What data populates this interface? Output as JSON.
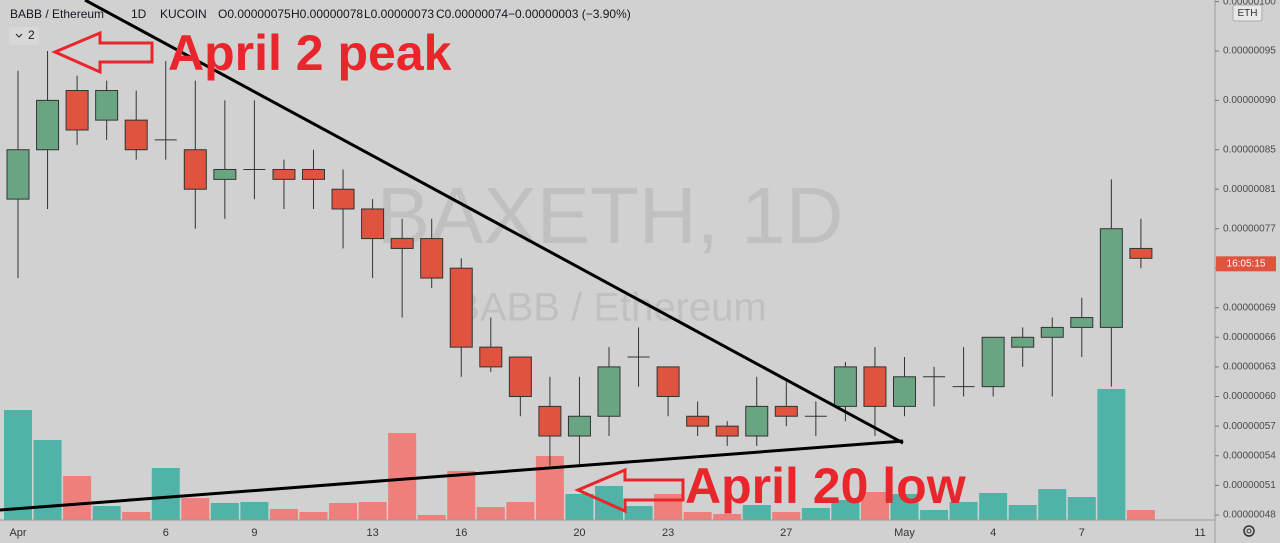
{
  "chart_data": {
    "type": "candlestick",
    "header": {
      "symbol": "BABB / Ethereum",
      "interval": "1D",
      "exchange": "KUCOIN",
      "open": "O0.00000075",
      "high": "H0.00000078",
      "low": "L0.00000073",
      "close": "C0.00000074",
      "change": "−0.00000003 (−3.90%)"
    },
    "indicator_badge": "2",
    "currency": "ETH",
    "countdown": "16:05:15",
    "watermark": "BAXETH, 1D",
    "watermark_sub": "BABB / Ethereum",
    "annotations": [
      "April 2 peak",
      "April 20 low"
    ],
    "categories": [
      "Apr",
      null,
      null,
      null,
      null,
      "6",
      null,
      null,
      "9",
      null,
      null,
      null,
      "13",
      null,
      null,
      "16",
      null,
      null,
      null,
      "20",
      null,
      null,
      "23",
      null,
      null,
      null,
      "27",
      null,
      null,
      null,
      "May",
      null,
      null,
      "4",
      null,
      null,
      "7",
      null,
      null,
      null,
      "11"
    ],
    "open": [
      8e-07,
      8.5e-07,
      9.1e-07,
      8.8e-07,
      8.8e-07,
      8.6e-07,
      8.5e-07,
      8.2e-07,
      8.3e-07,
      8.3e-07,
      8.3e-07,
      8.1e-07,
      7.9e-07,
      7.6e-07,
      7.6e-07,
      7.3e-07,
      6.5e-07,
      6.4e-07,
      5.9e-07,
      5.6e-07,
      5.8e-07,
      6.4e-07,
      6.3e-07,
      5.8e-07,
      5.7e-07,
      5.6e-07,
      5.9e-07,
      5.8e-07,
      5.9e-07,
      6.3e-07,
      5.9e-07,
      6.2e-07,
      6.1e-07,
      6.1e-07,
      6.5e-07,
      6.6e-07,
      6.7e-07,
      6.7e-07,
      7.5e-07,
      null,
      null
    ],
    "high": [
      9.3e-07,
      9.5e-07,
      9.25e-07,
      9.2e-07,
      9.1e-07,
      9.4e-07,
      9.2e-07,
      9e-07,
      9e-07,
      8.4e-07,
      8.5e-07,
      8.3e-07,
      8e-07,
      7.8e-07,
      7.8e-07,
      7.4e-07,
      6.8e-07,
      6.4e-07,
      6.2e-07,
      6.2e-07,
      6.5e-07,
      6.7e-07,
      6.3e-07,
      5.95e-07,
      5.75e-07,
      6.2e-07,
      6.15e-07,
      5.95e-07,
      6.35e-07,
      6.5e-07,
      6.4e-07,
      6.3e-07,
      6.5e-07,
      6.6e-07,
      6.7e-07,
      6.8e-07,
      7e-07,
      8.2e-07,
      7.8e-07,
      null,
      null
    ],
    "low": [
      7.2e-07,
      7.9e-07,
      8.55e-07,
      8.6e-07,
      8.4e-07,
      8.4e-07,
      7.7e-07,
      7.8e-07,
      8e-07,
      7.9e-07,
      7.9e-07,
      7.5e-07,
      7.2e-07,
      6.8e-07,
      7.1e-07,
      6.2e-07,
      6.25e-07,
      5.8e-07,
      5.3e-07,
      5.3e-07,
      5.6e-07,
      6.1e-07,
      5.8e-07,
      5.6e-07,
      5.5e-07,
      5.5e-07,
      5.7e-07,
      5.6e-07,
      5.75e-07,
      5.6e-07,
      5.8e-07,
      5.9e-07,
      6e-07,
      6e-07,
      6.3e-07,
      6e-07,
      6.4e-07,
      6.1e-07,
      7.3e-07,
      null,
      null
    ],
    "close": [
      8.5e-07,
      9e-07,
      8.7e-07,
      9.1e-07,
      8.5e-07,
      8.6e-07,
      8.1e-07,
      8.3e-07,
      8.3e-07,
      8.2e-07,
      8.2e-07,
      7.9e-07,
      7.6e-07,
      7.5e-07,
      7.2e-07,
      6.5e-07,
      6.3e-07,
      6e-07,
      5.6e-07,
      5.8e-07,
      6.3e-07,
      6.4e-07,
      6e-07,
      5.7e-07,
      5.6e-07,
      5.9e-07,
      5.8e-07,
      5.8e-07,
      6.3e-07,
      5.9e-07,
      6.2e-07,
      6.2e-07,
      6.1e-07,
      6.6e-07,
      6.6e-07,
      6.7e-07,
      6.8e-07,
      7.7e-07,
      7.4e-07,
      null,
      null
    ],
    "volume": [
      110,
      80,
      44,
      14,
      8,
      52,
      22,
      17,
      18,
      11,
      8,
      17,
      18,
      87,
      5,
      49,
      13,
      18,
      64,
      26,
      34,
      14,
      26,
      8,
      6,
      15,
      8,
      12,
      20,
      28,
      26,
      10,
      18,
      27,
      15,
      31,
      23,
      131,
      10,
      null,
      null
    ],
    "ylim": [
      4.749e-07,
      1.0017e-06
    ],
    "yticks": [
      {
        "value": 4.8e-07,
        "label": "0.00000048"
      },
      {
        "value": 5.1e-07,
        "label": "0.00000051"
      },
      {
        "value": 5.4e-07,
        "label": "0.00000054"
      },
      {
        "value": 5.7e-07,
        "label": "0.00000057"
      },
      {
        "value": 6e-07,
        "label": "0.00000060"
      },
      {
        "value": 6.3e-07,
        "label": "0.00000063"
      },
      {
        "value": 6.6e-07,
        "label": "0.00000066"
      },
      {
        "value": 6.9e-07,
        "label": "0.00000069"
      },
      {
        "value": 7.3e-07,
        "label": "0.00000073"
      },
      {
        "value": 7.7e-07,
        "label": "0.00000077"
      },
      {
        "value": 8.1e-07,
        "label": "0.00000081"
      },
      {
        "value": 8.5e-07,
        "label": "0.00000085"
      },
      {
        "value": 9e-07,
        "label": "0.00000090"
      },
      {
        "value": 9.5e-07,
        "label": "0.00000095"
      },
      {
        "value": 1e-06,
        "label": "0.00000100"
      }
    ],
    "grid": false,
    "up_color": "#6aa583",
    "down_color": "#e0533f",
    "volume_up_color": "#4fb3a7",
    "volume_down_color": "#ef7f7a",
    "annotation_color": "#e8262b"
  }
}
